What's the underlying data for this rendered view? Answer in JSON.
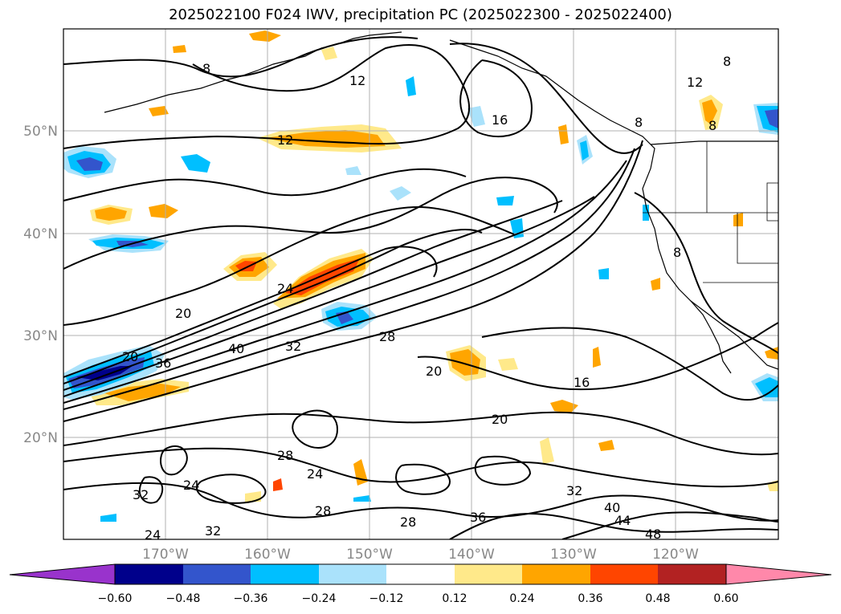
{
  "title": "2025022100 F024 IWV, precipitation PC (2025022300 - 2025022400)",
  "map": {
    "lon_labels": [
      "170°W",
      "160°W",
      "150°W",
      "140°W",
      "130°W",
      "120°W"
    ],
    "lat_labels": [
      "50°N",
      "40°N",
      "30°N",
      "20°N"
    ],
    "contour_labels": [
      "8",
      "8",
      "8",
      "12",
      "12",
      "12",
      "16",
      "16",
      "20",
      "20",
      "20",
      "20",
      "24",
      "24",
      "24",
      "24",
      "28",
      "28",
      "28",
      "28",
      "32",
      "32",
      "32",
      "32",
      "36",
      "36",
      "40",
      "40",
      "44",
      "48",
      "8",
      "8"
    ]
  },
  "colorbar": {
    "ticks": [
      "−0.60",
      "−0.48",
      "−0.36",
      "−0.24",
      "−0.12",
      "0.12",
      "0.24",
      "0.36",
      "0.48",
      "0.60"
    ],
    "colors": [
      "#9933cc",
      "#00008b",
      "#3355cc",
      "#00bfff",
      "#aae2fb",
      "#ffffff",
      "#ffe98a",
      "#ffa500",
      "#ff4500",
      "#b22222",
      "#ff88aa"
    ]
  },
  "colors": {
    "pos_light": "#ffe98a",
    "pos_mid": "#ffa500",
    "pos_strong": "#ff4500",
    "neg_light": "#aae2fb",
    "neg_mid": "#00bfff",
    "neg_strong": "#3355cc",
    "neg_deep": "#00008b"
  }
}
